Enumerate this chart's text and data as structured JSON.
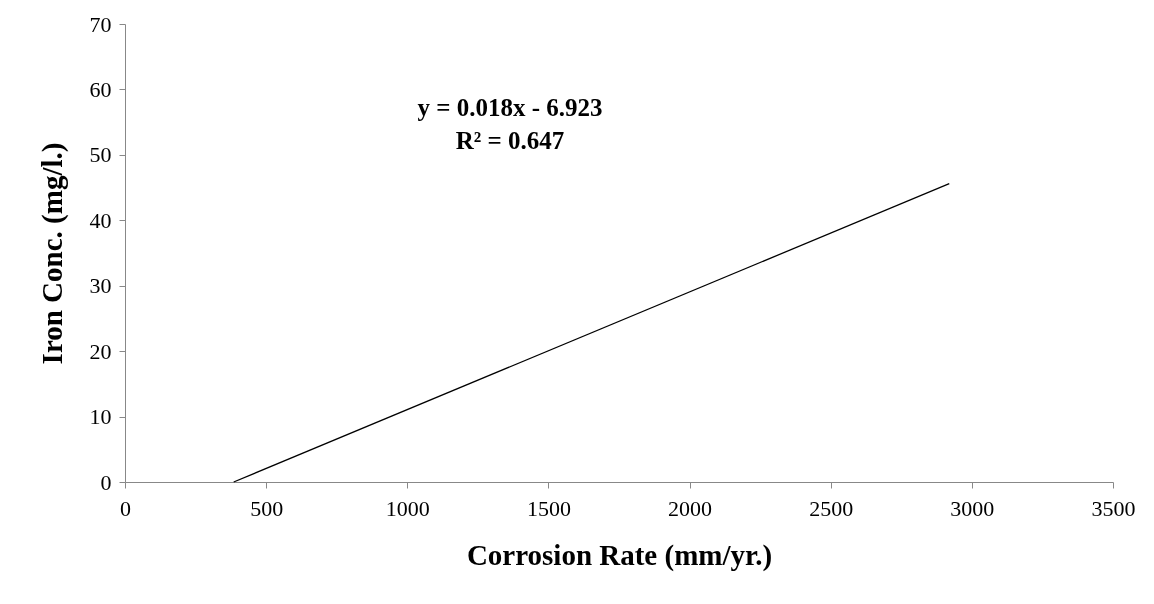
{
  "chart_data": {
    "type": "line",
    "xlabel": "Corrosion Rate (mm/yr.)",
    "ylabel": "Iron Conc. (mg/l.)",
    "annotations": [
      "y = 0.018x - 6.923",
      "R² = 0.647"
    ],
    "series": [
      {
        "color": "#000000",
        "x": [
          385,
          2920
        ],
        "values": [
          0,
          45.6
        ]
      }
    ],
    "xlim": [
      0,
      3500
    ],
    "xticks": [
      0,
      500,
      1000,
      1500,
      2000,
      2500,
      3000,
      3500
    ],
    "ylim": [
      0,
      70
    ],
    "yticks": [
      0,
      10,
      20,
      30,
      40,
      50,
      60,
      70
    ],
    "grid": false,
    "marker": "none",
    "line_style": "solid"
  }
}
